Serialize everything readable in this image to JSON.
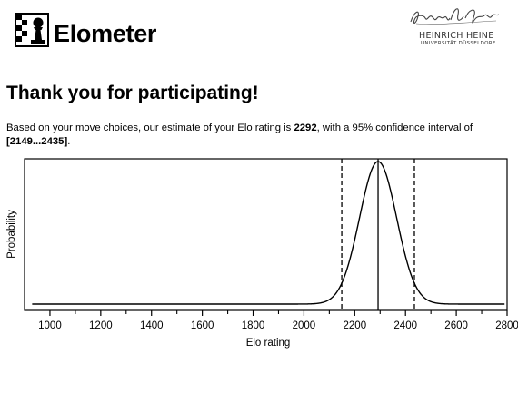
{
  "header": {
    "app_name": "Elometer",
    "app_icon": "chess-pawn-on-board-icon",
    "university_logo": {
      "name_line": "HEINRICH HEINE",
      "sub_line": "UNIVERSITÄT DÜSSELDORF"
    }
  },
  "main": {
    "title": "Thank you for participating!",
    "result": {
      "intro": "Based on your move choices, our estimate of your Elo rating is ",
      "estimate": "2292",
      "middle": ", with a 95% confidence interval of ",
      "interval": "[2149...2435]",
      "end": "."
    }
  },
  "chart_data": {
    "type": "line",
    "xlabel": "Elo rating",
    "ylabel": "Probability",
    "xlim": [
      900,
      2800
    ],
    "x_ticks": [
      1000,
      1200,
      1400,
      1600,
      1800,
      2000,
      2200,
      2400,
      2600,
      2800
    ],
    "y_ticks": [],
    "grid": false,
    "series": [
      {
        "distribution": "normal",
        "mean": 2292,
        "sd": 73,
        "x_range": [
          930,
          2790
        ]
      }
    ],
    "reference_lines": [
      {
        "x": 2149,
        "style": "dashed"
      },
      {
        "x": 2292,
        "style": "solid"
      },
      {
        "x": 2435,
        "style": "dashed"
      }
    ]
  }
}
